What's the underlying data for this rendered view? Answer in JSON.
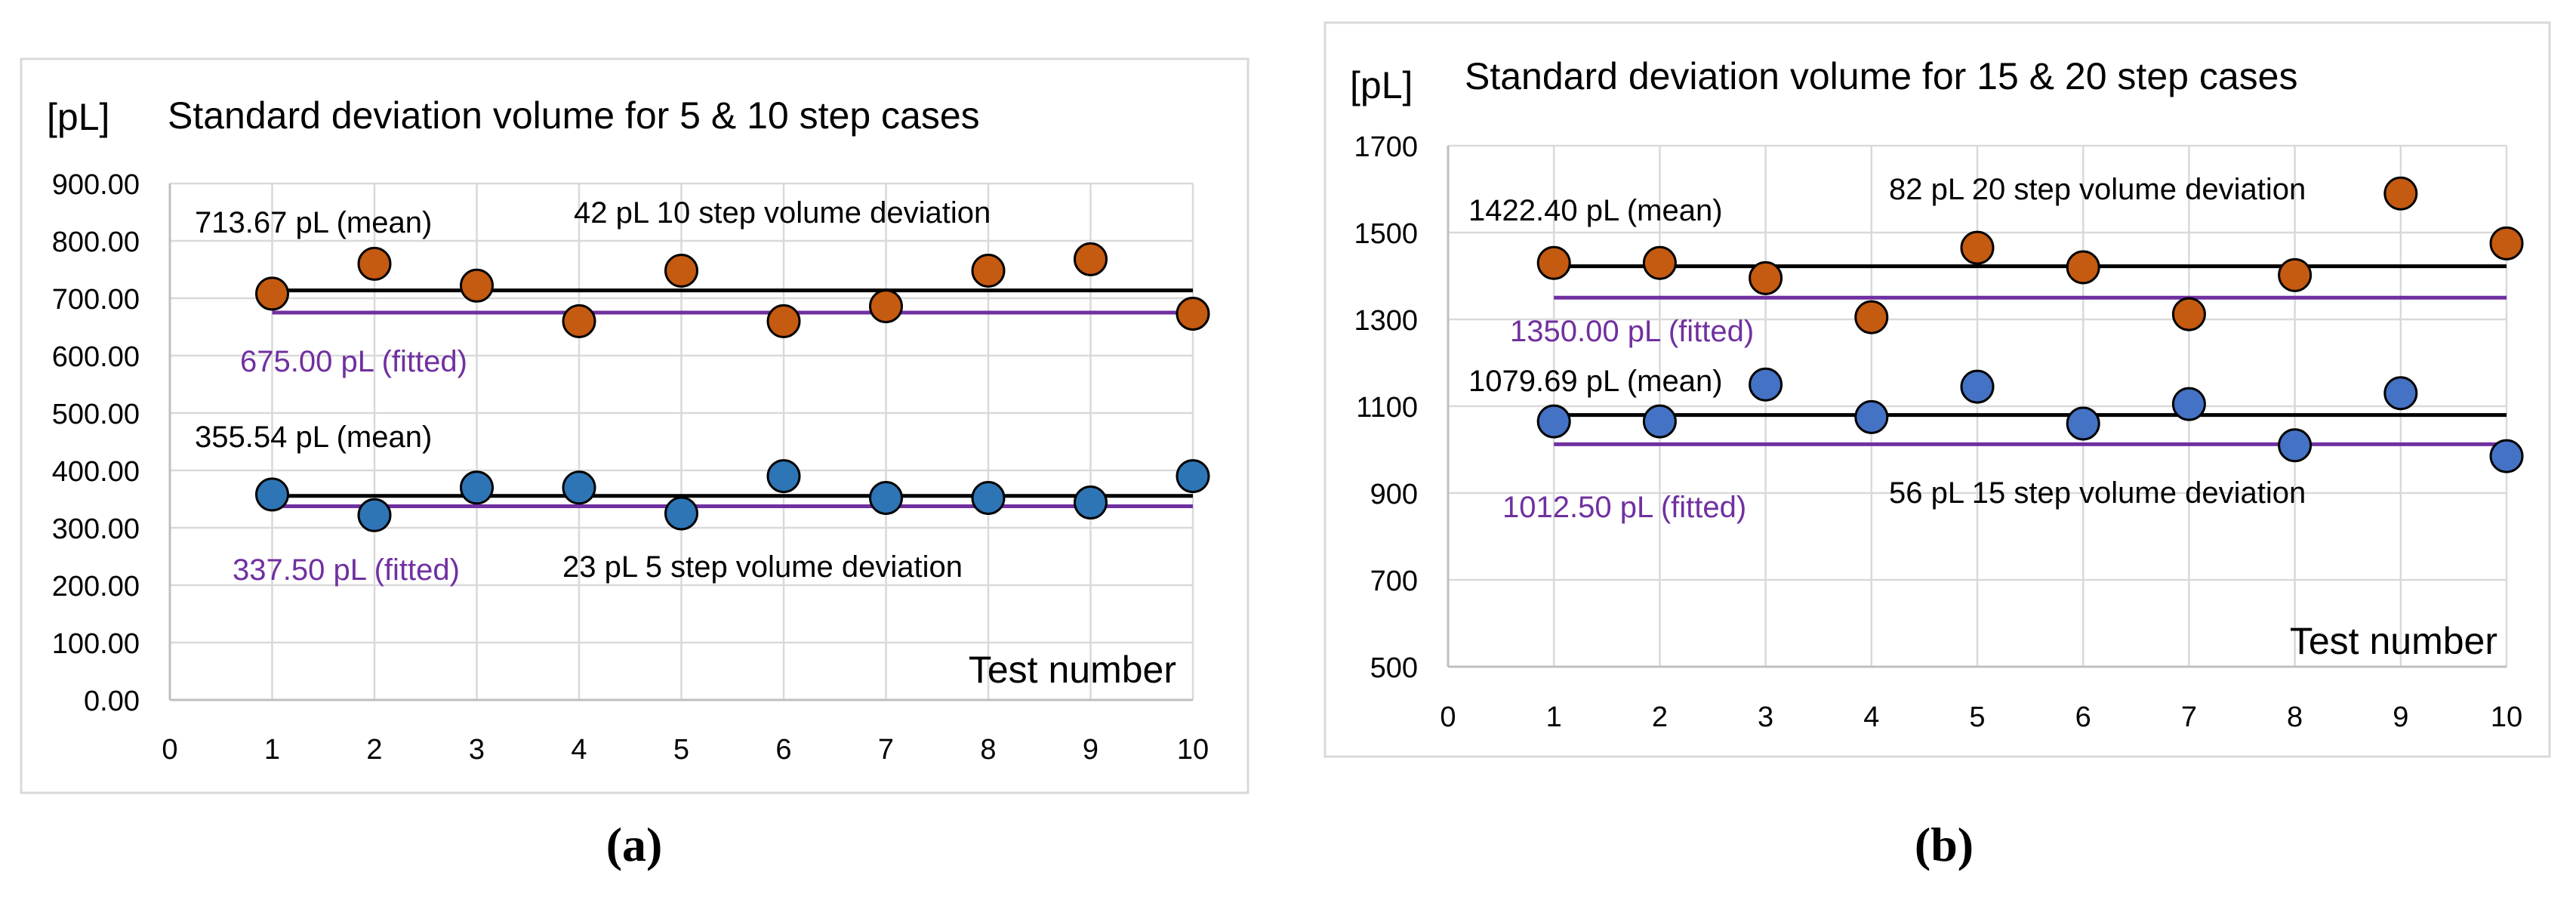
{
  "chart_data": [
    {
      "type": "scatter",
      "panel": "a",
      "caption": "(a)",
      "title": "Standard deviation volume for 5 & 10 step cases",
      "ylabel": "[pL]",
      "xlabel": "Test number",
      "xlim": [
        0,
        10
      ],
      "ylim": [
        0,
        900
      ],
      "xticks": [
        "0",
        "1",
        "2",
        "3",
        "4",
        "5",
        "6",
        "7",
        "8",
        "9",
        "10"
      ],
      "yticks": [
        "0.00",
        "100.00",
        "200.00",
        "300.00",
        "400.00",
        "500.00",
        "600.00",
        "700.00",
        "800.00",
        "900.00"
      ],
      "grid": true,
      "series": [
        {
          "name": "10 step",
          "color": "#c55a11",
          "x": [
            1,
            2,
            3,
            4,
            5,
            6,
            7,
            8,
            9,
            10
          ],
          "y": [
            708,
            760,
            722,
            660,
            748,
            660,
            686,
            748,
            768,
            673
          ],
          "mean": 713.67,
          "fitted": 675.0,
          "mean_label": "713.67 pL (mean)",
          "fitted_label": "675.00 pL (fitted)",
          "deviation_label": "42 pL 10 step volume deviation"
        },
        {
          "name": "5 step",
          "color": "#2e75b6",
          "x": [
            1,
            2,
            3,
            4,
            5,
            6,
            7,
            8,
            9,
            10
          ],
          "y": [
            358,
            322,
            370,
            370,
            325,
            390,
            352,
            352,
            344,
            390
          ],
          "mean": 355.54,
          "fitted": 337.5,
          "mean_label": "355.54 pL (mean)",
          "fitted_label": "337.50 pL (fitted)",
          "deviation_label": "23 pL  5 step volume deviation"
        }
      ]
    },
    {
      "type": "scatter",
      "panel": "b",
      "caption": "(b)",
      "title": "Standard deviation volume for 15 & 20 step cases",
      "ylabel": "[pL]",
      "xlabel": "Test number",
      "xlim": [
        0,
        10
      ],
      "ylim": [
        500,
        1700
      ],
      "xticks": [
        "0",
        "1",
        "2",
        "3",
        "4",
        "5",
        "6",
        "7",
        "8",
        "9",
        "10"
      ],
      "yticks": [
        "500",
        "700",
        "900",
        "1100",
        "1300",
        "1500",
        "1700"
      ],
      "grid": true,
      "series": [
        {
          "name": "20 step",
          "color": "#c55a11",
          "x": [
            1,
            2,
            3,
            4,
            5,
            6,
            7,
            8,
            9,
            10
          ],
          "y": [
            1430,
            1430,
            1395,
            1305,
            1465,
            1420,
            1312,
            1402,
            1590,
            1475
          ],
          "mean": 1422.4,
          "fitted": 1350.0,
          "mean_label": "1422.40 pL (mean)",
          "fitted_label": "1350.00 pL (fitted)",
          "deviation_label": "82 pL 20 step volume deviation"
        },
        {
          "name": "15 step",
          "color": "#4472c4",
          "x": [
            1,
            2,
            3,
            4,
            5,
            6,
            7,
            8,
            9,
            10
          ],
          "y": [
            1065,
            1065,
            1150,
            1075,
            1145,
            1060,
            1105,
            1010,
            1130,
            985
          ],
          "mean": 1079.69,
          "fitted": 1012.5,
          "mean_label": "1079.69 pL (mean)",
          "fitted_label": "1012.50 pL (fitted)",
          "deviation_label": "56 pL 15 step volume deviation"
        }
      ]
    }
  ]
}
